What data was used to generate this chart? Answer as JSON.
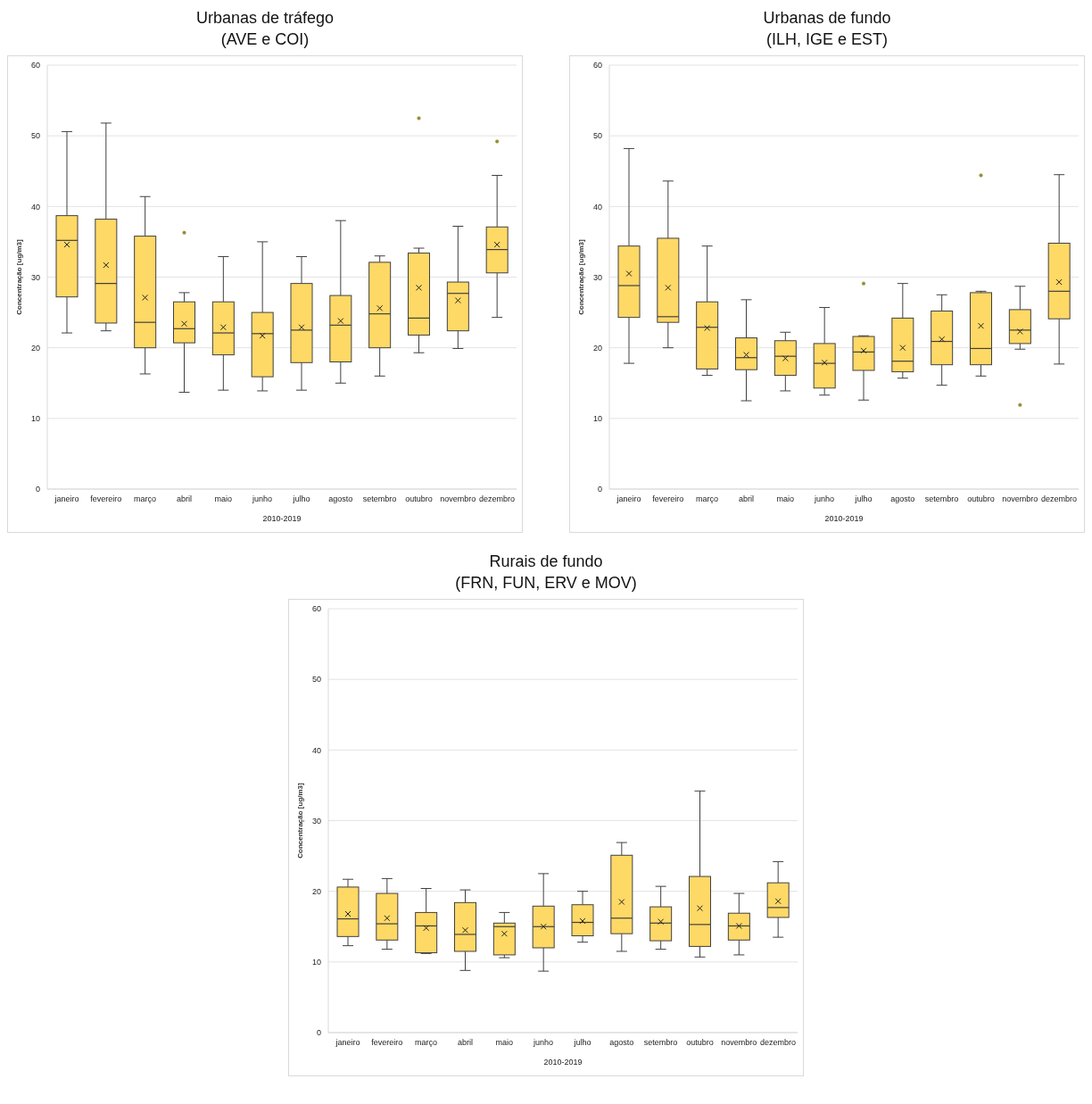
{
  "chart_data": [
    {
      "type": "box",
      "title": "Urbanas de tráfego",
      "subtitle": "(AVE e COI)",
      "xlabel": "2010-2019",
      "ylabel": "Concentração [ug/m3]",
      "color": "#ffd966",
      "grid": "y",
      "ylim": [
        0,
        60
      ],
      "yticks": [
        0,
        10,
        20,
        30,
        40,
        50,
        60
      ],
      "categories": [
        "janeiro",
        "fevereiro",
        "março",
        "abril",
        "maio",
        "junho",
        "julho",
        "agosto",
        "setembro",
        "outubro",
        "novembro",
        "dezembro"
      ],
      "boxes": [
        {
          "low": 22.1,
          "q1": 27.2,
          "median": 35.2,
          "q3": 38.7,
          "high": 50.6,
          "mean": 34.6
        },
        {
          "low": 22.4,
          "q1": 23.5,
          "median": 29.1,
          "q3": 38.2,
          "high": 51.8,
          "mean": 31.7
        },
        {
          "low": 16.3,
          "q1": 20.0,
          "median": 23.6,
          "q3": 35.8,
          "high": 41.4,
          "mean": 27.1
        },
        {
          "low": 13.7,
          "q1": 20.7,
          "median": 22.7,
          "q3": 26.5,
          "high": 27.8,
          "mean": 23.4,
          "outliers": [
            36.3
          ]
        },
        {
          "low": 14.0,
          "q1": 19.0,
          "median": 22.1,
          "q3": 26.5,
          "high": 32.9,
          "mean": 22.9
        },
        {
          "low": 13.9,
          "q1": 15.9,
          "median": 22.0,
          "q3": 25.0,
          "high": 35.0,
          "mean": 21.7
        },
        {
          "low": 14.0,
          "q1": 17.9,
          "median": 22.5,
          "q3": 29.1,
          "high": 32.9,
          "mean": 22.9
        },
        {
          "low": 15.0,
          "q1": 18.0,
          "median": 23.2,
          "q3": 27.4,
          "high": 38.0,
          "mean": 23.8
        },
        {
          "low": 16.0,
          "q1": 20.0,
          "median": 24.8,
          "q3": 32.1,
          "high": 33.0,
          "mean": 25.6
        },
        {
          "low": 19.3,
          "q1": 21.8,
          "median": 24.2,
          "q3": 33.4,
          "high": 34.1,
          "mean": 28.5,
          "outliers": [
            52.5
          ]
        },
        {
          "low": 19.9,
          "q1": 22.4,
          "median": 27.7,
          "q3": 29.3,
          "high": 37.2,
          "mean": 26.7
        },
        {
          "low": 24.3,
          "q1": 30.6,
          "median": 33.9,
          "q3": 37.1,
          "high": 44.4,
          "mean": 34.6,
          "outliers": [
            49.2
          ]
        }
      ]
    },
    {
      "type": "box",
      "title": "Urbanas de fundo",
      "subtitle": "(ILH, IGE e EST)",
      "xlabel": "2010-2019",
      "ylabel": "Concentração [ug/m3]",
      "color": "#ffd966",
      "grid": "y",
      "ylim": [
        0,
        60
      ],
      "yticks": [
        0,
        10,
        20,
        30,
        40,
        50,
        60
      ],
      "categories": [
        "janeiro",
        "fevereiro",
        "março",
        "abril",
        "maio",
        "junho",
        "julho",
        "agosto",
        "setembro",
        "outubro",
        "novembro",
        "dezembro"
      ],
      "boxes": [
        {
          "low": 17.8,
          "q1": 24.3,
          "median": 28.8,
          "q3": 34.4,
          "high": 48.2,
          "mean": 30.5
        },
        {
          "low": 20.0,
          "q1": 23.6,
          "median": 24.4,
          "q3": 35.5,
          "high": 43.6,
          "mean": 28.5
        },
        {
          "low": 16.1,
          "q1": 17.0,
          "median": 22.9,
          "q3": 26.5,
          "high": 34.4,
          "mean": 22.8
        },
        {
          "low": 12.5,
          "q1": 16.9,
          "median": 18.6,
          "q3": 21.4,
          "high": 26.8,
          "mean": 19.0
        },
        {
          "low": 13.9,
          "q1": 16.1,
          "median": 18.8,
          "q3": 21.0,
          "high": 22.2,
          "mean": 18.5
        },
        {
          "low": 13.3,
          "q1": 14.3,
          "median": 17.8,
          "q3": 20.6,
          "high": 25.7,
          "mean": 17.9
        },
        {
          "low": 12.6,
          "q1": 16.8,
          "median": 19.4,
          "q3": 21.6,
          "high": 21.7,
          "mean": 19.6,
          "outliers": [
            29.1
          ]
        },
        {
          "low": 15.7,
          "q1": 16.6,
          "median": 18.1,
          "q3": 24.2,
          "high": 29.1,
          "mean": 20.0
        },
        {
          "low": 14.7,
          "q1": 17.6,
          "median": 20.9,
          "q3": 25.2,
          "high": 27.5,
          "mean": 21.2
        },
        {
          "low": 16.0,
          "q1": 17.6,
          "median": 19.9,
          "q3": 27.8,
          "high": 28.0,
          "mean": 23.1,
          "outliers": [
            44.4
          ]
        },
        {
          "low": 19.8,
          "q1": 20.6,
          "median": 22.5,
          "q3": 25.4,
          "high": 28.7,
          "mean": 22.3,
          "outliers": [
            11.9
          ]
        },
        {
          "low": 17.7,
          "q1": 24.1,
          "median": 28.0,
          "q3": 34.8,
          "high": 44.5,
          "mean": 29.3
        }
      ]
    },
    {
      "type": "box",
      "title": "Rurais de fundo",
      "subtitle": "(FRN, FUN, ERV e MOV)",
      "xlabel": "2010-2019",
      "ylabel": "Concentração [ug/m3]",
      "color": "#ffd966",
      "grid": "y",
      "ylim": [
        0,
        60
      ],
      "yticks": [
        0,
        10,
        20,
        30,
        40,
        50,
        60
      ],
      "categories": [
        "janeiro",
        "fevereiro",
        "março",
        "abril",
        "maio",
        "junho",
        "julho",
        "agosto",
        "setembro",
        "outubro",
        "novembro",
        "dezembro"
      ],
      "boxes": [
        {
          "low": 12.3,
          "q1": 13.6,
          "median": 16.1,
          "q3": 20.6,
          "high": 21.7,
          "mean": 16.8
        },
        {
          "low": 11.8,
          "q1": 13.1,
          "median": 15.4,
          "q3": 19.7,
          "high": 21.8,
          "mean": 16.2
        },
        {
          "low": 11.2,
          "q1": 11.3,
          "median": 15.1,
          "q3": 17.0,
          "high": 20.4,
          "mean": 14.8
        },
        {
          "low": 8.8,
          "q1": 11.5,
          "median": 13.9,
          "q3": 18.4,
          "high": 20.2,
          "mean": 14.5
        },
        {
          "low": 10.6,
          "q1": 11.0,
          "median": 15.0,
          "q3": 15.5,
          "high": 17.0,
          "mean": 14.0
        },
        {
          "low": 8.7,
          "q1": 12.0,
          "median": 15.0,
          "q3": 17.9,
          "high": 22.5,
          "mean": 15.0
        },
        {
          "low": 12.8,
          "q1": 13.7,
          "median": 15.6,
          "q3": 18.1,
          "high": 20.0,
          "mean": 15.8
        },
        {
          "low": 11.5,
          "q1": 14.0,
          "median": 16.2,
          "q3": 25.1,
          "high": 26.9,
          "mean": 18.5
        },
        {
          "low": 11.8,
          "q1": 13.0,
          "median": 15.5,
          "q3": 17.8,
          "high": 20.7,
          "mean": 15.7
        },
        {
          "low": 10.7,
          "q1": 12.2,
          "median": 15.3,
          "q3": 22.1,
          "high": 34.2,
          "mean": 17.6
        },
        {
          "low": 11.0,
          "q1": 13.1,
          "median": 15.1,
          "q3": 16.9,
          "high": 19.7,
          "mean": 15.1
        },
        {
          "low": 13.5,
          "q1": 16.3,
          "median": 17.7,
          "q3": 21.2,
          "high": 24.2,
          "mean": 18.6
        }
      ]
    }
  ]
}
